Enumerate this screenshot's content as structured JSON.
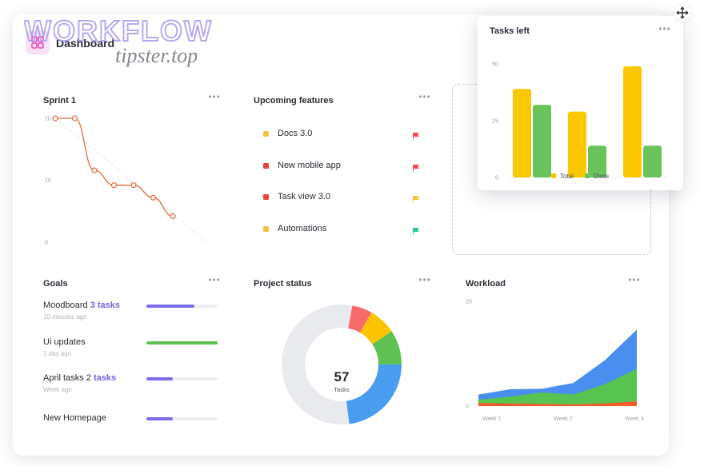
{
  "page": {
    "title": "Dashboard"
  },
  "watermark": {
    "line1": "WORKFLOW",
    "line2": "tipster.top"
  },
  "sprint": {
    "title": "Sprint 1",
    "y_ticks": [
      "20",
      "10",
      "0"
    ],
    "chart_data": {
      "type": "line",
      "x": [
        1,
        2,
        3,
        4,
        5,
        6,
        7
      ],
      "series": [
        {
          "values": [
            20,
            20,
            11.6,
            9.2,
            9.2,
            7.2,
            4.2
          ],
          "color": "#e8663a"
        }
      ],
      "ylim": [
        0,
        20
      ]
    }
  },
  "features": {
    "title": "Upcoming features",
    "items": [
      {
        "label": "Docs 3.0",
        "bullet": "#f9c23c",
        "flag": "#f04a5a"
      },
      {
        "label": "New mobile app",
        "bullet": "#e8413c",
        "flag": "#f04a5a"
      },
      {
        "label": "Task view 3.0",
        "bullet": "#e8413c",
        "flag": "#f9c23c"
      },
      {
        "label": "Automations",
        "bullet": "#f9c23c",
        "flag": "#2bc4a2"
      }
    ]
  },
  "tasks_left": {
    "title": "Tasks left",
    "y_ticks": [
      "50",
      "25",
      "0"
    ],
    "legend": {
      "total": "Total",
      "done": "Done"
    },
    "chart_data": {
      "type": "bar",
      "categories": [
        "",
        "",
        ""
      ],
      "series": [
        {
          "name": "Total",
          "values": [
            39,
            29,
            49
          ],
          "color": "#f9c800"
        },
        {
          "name": "Done",
          "values": [
            32,
            14,
            14
          ],
          "color": "#6ac35a"
        }
      ],
      "ylim": [
        0,
        50
      ]
    }
  },
  "goals": {
    "title": "Goals",
    "items": [
      {
        "name": "Moodboard ",
        "highlight": "3 tasks",
        "time": "10 minutes ago",
        "progress": 0.67,
        "color": "#7b6cf0"
      },
      {
        "name": "Ui updates",
        "highlight": "",
        "time": "1 day ago",
        "progress": 1.0,
        "color": "#5fc154"
      },
      {
        "name": "April tasks 2 ",
        "highlight": "tasks",
        "time": "Week ago",
        "progress": 0.37,
        "color": "#7b6cf0"
      },
      {
        "name": "New Homepage",
        "highlight": "",
        "time": "",
        "progress": 0.37,
        "color": "#7b6cf0"
      }
    ]
  },
  "project_status": {
    "title": "Project status",
    "total": "57",
    "total_label": "Tasks",
    "chart_data": {
      "type": "pie",
      "slices": [
        {
          "value": 3.1,
          "color": "#f76b6b"
        },
        {
          "value": 4.2,
          "color": "#fcc400"
        },
        {
          "value": 5.3,
          "color": "#5fc154"
        },
        {
          "value": 13.1,
          "color": "#4a9cf0"
        },
        {
          "value": 31.3,
          "color": "#e9eaee"
        }
      ]
    }
  },
  "workload": {
    "title": "Workload",
    "y_ticks": [
      "20",
      "0"
    ],
    "x_ticks": [
      "Week 1",
      "Week 2",
      "Week 3"
    ],
    "chart_data": {
      "type": "area",
      "x": [
        0,
        1,
        2,
        3,
        4,
        5
      ],
      "series": [
        {
          "values": [
            0.6,
            0.5,
            0.4,
            0.3,
            0.5,
            0.9
          ],
          "color": "#f45a2a"
        },
        {
          "values": [
            1.2,
            1.8,
            2.6,
            2.2,
            4.2,
            7.1
          ],
          "color": "#56c44e"
        },
        {
          "values": [
            2.2,
            3.2,
            3.3,
            4.4,
            8.8,
            14.6
          ],
          "color": "#4a8ff0"
        }
      ],
      "ylim": [
        0,
        20
      ],
      "stacked": true
    }
  }
}
